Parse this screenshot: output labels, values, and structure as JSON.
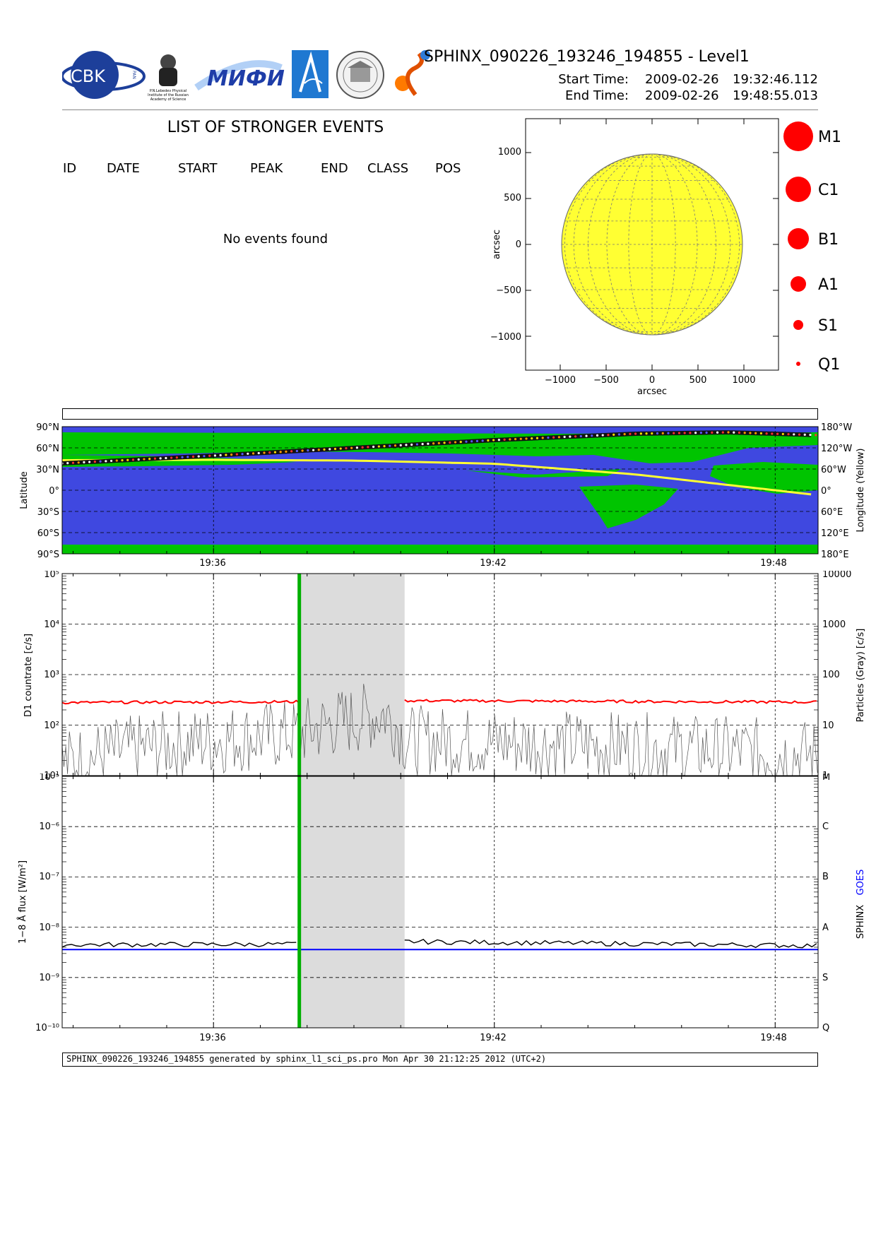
{
  "header": {
    "title": "SPHINX_090226_193246_194855 - Level1",
    "start_label": "Start Time:",
    "start_date": "2009-02-26",
    "start_time": "19:32:46.112",
    "end_label": "End Time:",
    "end_date": "2009-02-26",
    "end_time": "19:48:55.013",
    "logos": {
      "cbk": "CBK",
      "cbk_sub": "PAN",
      "lebedev_line1": "P.N.Lebedev Physical",
      "lebedev_line2": "Institute of the Russian",
      "lebedev_line3": "Academy of Science",
      "mifi": "МИФИ"
    }
  },
  "events": {
    "title": "LIST OF STRONGER EVENTS",
    "columns": [
      "ID",
      "DATE",
      "START",
      "PEAK",
      "END",
      "CLASS",
      "POS"
    ],
    "empty_message": "No events found"
  },
  "sun_map": {
    "xlabel": "arcsec",
    "ylabel": "arcsec",
    "x_ticks": [
      "−1000",
      "−500",
      "0",
      "500",
      "1000"
    ],
    "y_ticks": [
      "1000",
      "500",
      "0",
      "−500",
      "−1000"
    ],
    "disk_color": "#ffff33"
  },
  "class_legend": [
    {
      "label": "M1",
      "size": 21
    },
    {
      "label": "C1",
      "size": 18
    },
    {
      "label": "B1",
      "size": 15
    },
    {
      "label": "A1",
      "size": 11
    },
    {
      "label": "S1",
      "size": 7
    },
    {
      "label": "Q1",
      "size": 3
    }
  ],
  "chart_data": [
    {
      "type": "map",
      "name": "orbit",
      "ylabel_left": "Latitude",
      "ylabel_right": "Longitude (Yellow)",
      "y_ticks_left": [
        "90°N",
        "60°N",
        "30°N",
        "0°",
        "30°S",
        "60°S",
        "90°S"
      ],
      "y_ticks_right": [
        "180°W",
        "120°W",
        "60°W",
        "0°",
        "60°E",
        "120°E",
        "180°E"
      ],
      "x_ticks": [
        "19:36",
        "19:42",
        "19:48"
      ],
      "colors": {
        "ocean": "#3f48e0",
        "land": "#00c400",
        "track": "#111111",
        "longitude": "#ffff33"
      },
      "track": {
        "time": [
          "19:32:46",
          "19:36:00",
          "19:42:00",
          "19:45:00",
          "19:47:00",
          "19:48:55"
        ],
        "latitude_deg": [
          38,
          49,
          71,
          80,
          82,
          78
        ]
      },
      "longitude_curve": {
        "time": [
          "19:32:46",
          "19:36:00",
          "19:39:00",
          "19:42:00",
          "19:45:00",
          "19:48:55"
        ],
        "longitude_deg": [
          -85,
          -86,
          -84,
          -75,
          -45,
          14
        ]
      }
    },
    {
      "type": "line",
      "name": "countrate",
      "ylabel": "D1 countrate [c/s]",
      "ylabel_right": "Particles (Gray) [c/s]",
      "yscale": "log",
      "ylim": [
        10,
        100000
      ],
      "y_ticks_left": [
        "10¹",
        "10²",
        "10³",
        "10⁴",
        "10⁵"
      ],
      "y_ticks_right": [
        "1",
        "10",
        "100",
        "1000",
        "10000"
      ],
      "x_ticks": [
        "19:36",
        "19:42",
        "19:48"
      ],
      "series": [
        {
          "color": "#ff0000",
          "time": [
            "19:32:46",
            "19:37:50",
            "19:40:05",
            "19:48:55"
          ],
          "values": [
            280,
            290,
            305,
            285
          ]
        },
        {
          "color": "#555555",
          "axis": "right",
          "time": [
            "19:32:46",
            "19:37:50",
            "19:39:00",
            "19:39:40",
            "19:40:05",
            "19:48:55"
          ],
          "values": [
            2,
            8,
            15,
            20,
            6,
            3
          ]
        }
      ],
      "shaded": [
        "19:37:50",
        "19:40:05"
      ],
      "marker": "19:37:50",
      "marker_color": "#00b000"
    },
    {
      "type": "line",
      "name": "flux",
      "ylabel": "1−8 Å flux [W/m²]",
      "ylabel_right": [
        "SPHINX",
        "GOES"
      ],
      "yscale": "log",
      "ylim": [
        1e-10,
        1e-05
      ],
      "y_ticks_left": [
        "10⁻¹⁰",
        "10⁻⁹",
        "10⁻⁸",
        "10⁻⁷",
        "10⁻⁶",
        "10⁻⁵"
      ],
      "y_ticks_right": [
        "Q",
        "S",
        "A",
        "B",
        "C",
        "M"
      ],
      "x_ticks": [
        "19:36",
        "19:42",
        "19:48"
      ],
      "series": [
        {
          "name": "SPHINX",
          "color": "#000000",
          "time": [
            "19:32:46",
            "19:37:50",
            "19:40:05",
            "19:48:55"
          ],
          "values": [
            4.5e-09,
            4.6e-09,
            5.2e-09,
            4.3e-09
          ]
        },
        {
          "name": "GOES",
          "color": "#0000ff",
          "time": [
            "19:32:46",
            "19:48:55"
          ],
          "values": [
            3.6e-09,
            3.6e-09
          ]
        }
      ],
      "shaded": [
        "19:37:50",
        "19:40:05"
      ],
      "marker": "19:37:50",
      "marker_color": "#00b000"
    }
  ],
  "footer": {
    "text": "SPHINX_090226_193246_194855 generated by sphinx_l1_sci_ps.pro Mon Apr 30 21:12:25 2012 (UTC+2)"
  }
}
